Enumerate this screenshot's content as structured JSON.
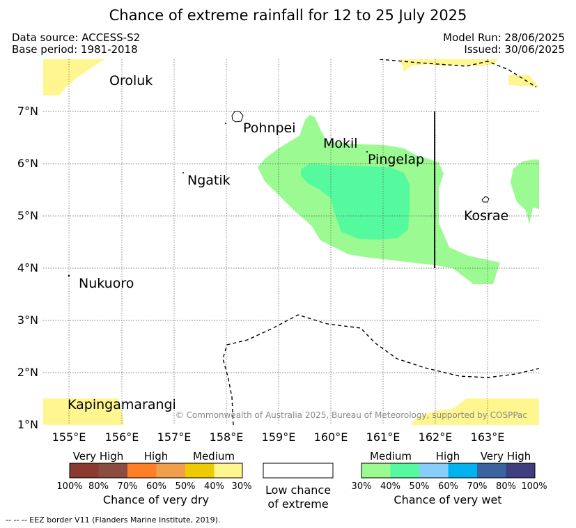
{
  "title": "Chance of extreme rainfall for 12 to 25 July 2025",
  "meta": {
    "data_source": "Data source: ACCESS-S2",
    "base_period": "Base period: 1981-2018",
    "model_run": "Model Run: 28/06/2025",
    "issued": "Issued: 30/06/2025"
  },
  "map": {
    "lon_labels": [
      "155°E",
      "156°E",
      "157°E",
      "158°E",
      "159°E",
      "160°E",
      "161°E",
      "162°E",
      "163°E"
    ],
    "lat_labels": [
      "1°N",
      "2°N",
      "3°N",
      "4°N",
      "5°N",
      "6°N",
      "7°N"
    ],
    "places": [
      "Oroluk",
      "Pohnpei",
      "Mokil",
      "Pingelap",
      "Ngatik",
      "Kosrae",
      "Nukuoro",
      "Kapingamarangi"
    ],
    "copyright": "© Commonwealth of Australia 2025, Bureau of Meteorology, supported by COSPPac",
    "colors": {
      "dry_medium": "#fff68f",
      "wet_medium": "#9bfa91",
      "wet_40": "#55fa9f"
    }
  },
  "legend": {
    "dry": {
      "groups": [
        "Very High",
        "High",
        "Medium"
      ],
      "pcts": [
        "100%",
        "80%",
        "70%",
        "60%",
        "50%",
        "40%",
        "30%"
      ],
      "title": "Chance of very dry",
      "colors": [
        "#8b3a30",
        "#8b4d3f",
        "#ff7f27",
        "#f0a04a",
        "#eecb00",
        "#fff68f"
      ]
    },
    "low": {
      "line1": "Low chance",
      "line2": "of extreme"
    },
    "wet": {
      "groups": [
        "Medium",
        "High",
        "Very High"
      ],
      "pcts": [
        "30%",
        "40%",
        "50%",
        "60%",
        "70%",
        "80%",
        "100%"
      ],
      "title": "Chance of very wet",
      "colors": [
        "#9bfa91",
        "#55fa9f",
        "#87cefa",
        "#00b3ee",
        "#3a64a0",
        "#3f3f7f"
      ]
    }
  },
  "footnote": "-- -- -- EEZ border V11 (Flanders Marine Institute, 2019)."
}
